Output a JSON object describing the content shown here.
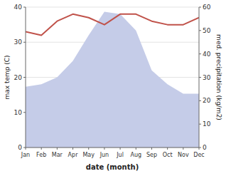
{
  "chart_data": {
    "type": "line",
    "xlabel": "date (month)",
    "ylabel": "max temp (C)",
    "y2label": "med. precipitation (kg/m2)",
    "categories": [
      "Jan",
      "Feb",
      "Mar",
      "Apr",
      "May",
      "Jun",
      "Jul",
      "Aug",
      "Sep",
      "Oct",
      "Nov",
      "Dec"
    ],
    "series": [
      {
        "type": "area",
        "axis": "y2",
        "color": "#c5cce8",
        "values": [
          26,
          27,
          30,
          37,
          48,
          58,
          57,
          50,
          33,
          27,
          23,
          23
        ]
      },
      {
        "type": "line",
        "color": "#c0524a",
        "values": [
          33,
          32,
          36,
          38,
          37,
          35,
          38,
          38,
          36,
          35,
          35,
          37
        ]
      }
    ],
    "ylim": [
      0,
      40
    ],
    "yticks": [
      0,
      10,
      20,
      30,
      40
    ],
    "y2lim": [
      0,
      60
    ],
    "y2ticks": [
      0,
      10,
      20,
      30,
      40,
      50,
      60
    ],
    "grid": true
  }
}
